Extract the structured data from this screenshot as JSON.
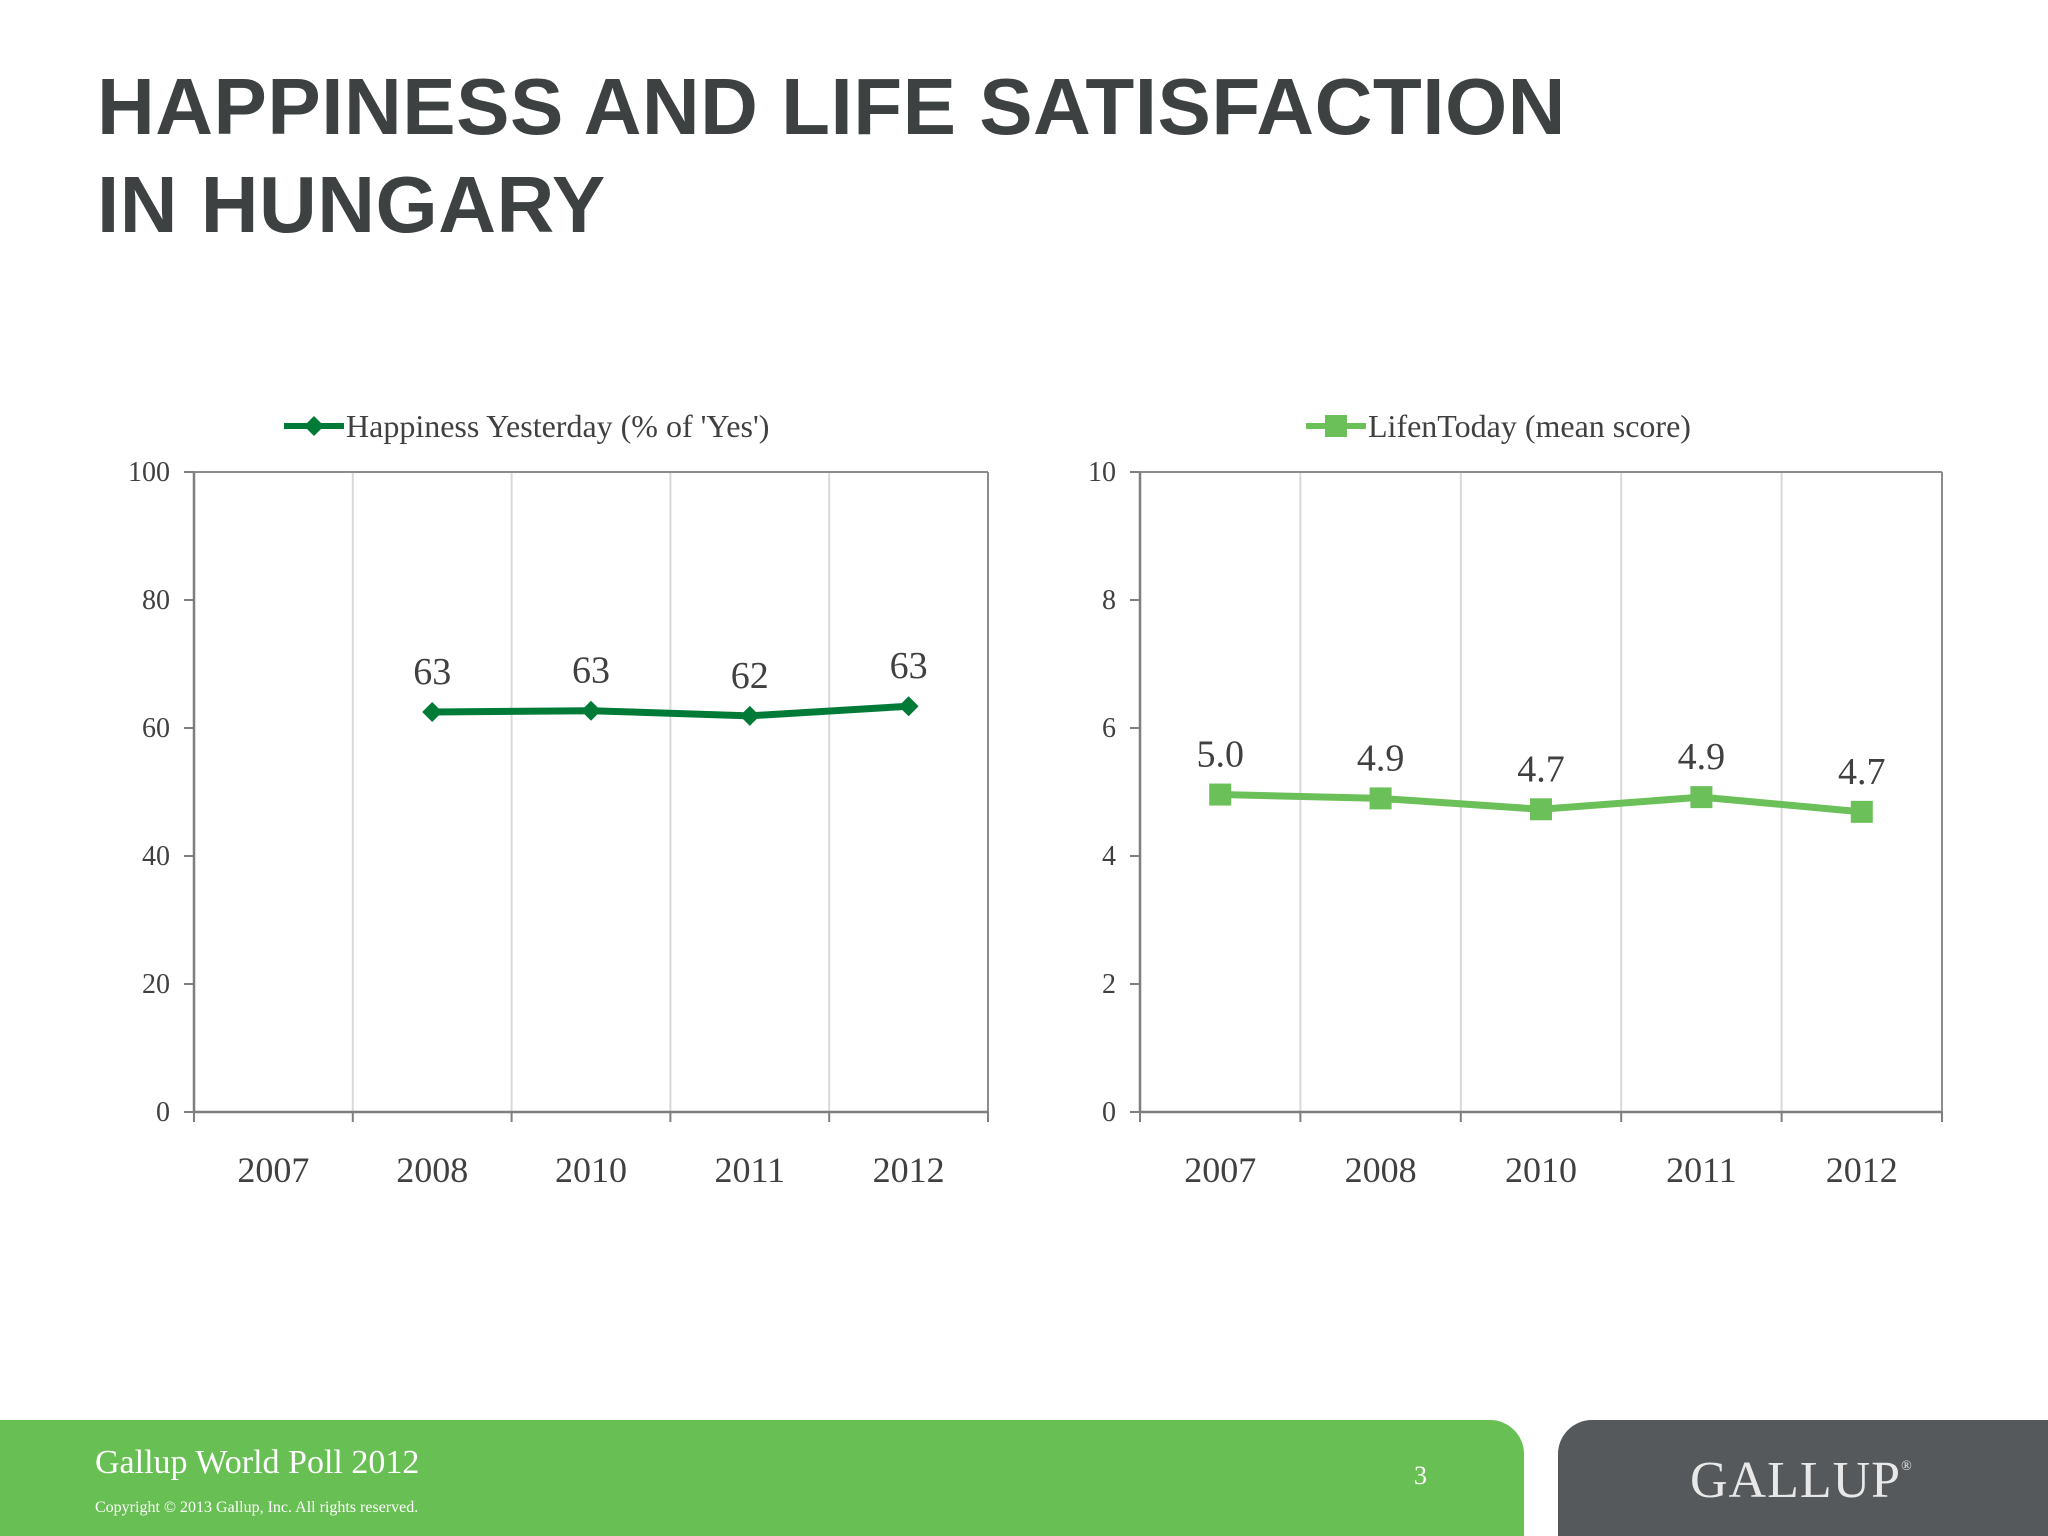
{
  "title": {
    "line1": "HAPPINESS AND LIFE SATISFACTION",
    "line2": "IN HUNGARY"
  },
  "colors": {
    "dark_green": "#007a37",
    "light_green": "#6cc05a",
    "title_gray": "#3e4142",
    "footer_green": "#68bf53",
    "footer_gray": "#55595b"
  },
  "chart_data": [
    {
      "type": "line",
      "categories": [
        "2007",
        "2008",
        "2010",
        "2011",
        "2012"
      ],
      "series": [
        {
          "name": "Happiness Yesterday (% of 'Yes')",
          "values": [
            null,
            62.5,
            62.7,
            61.9,
            63.4
          ],
          "labels": [
            null,
            "63",
            "63",
            "62",
            "63"
          ],
          "marker": "diamond"
        }
      ],
      "ylim": [
        0,
        100
      ],
      "yticks": [
        0,
        20,
        40,
        60,
        80,
        100
      ],
      "legend": "top",
      "grid": "vertical"
    },
    {
      "type": "line",
      "categories": [
        "2007",
        "2008",
        "2010",
        "2011",
        "2012"
      ],
      "series": [
        {
          "name": "LifenToday (mean score)",
          "values": [
            4.96,
            4.9,
            4.73,
            4.92,
            4.69
          ],
          "labels": [
            "5.0",
            "4.9",
            "4.7",
            "4.9",
            "4.7"
          ],
          "marker": "square"
        }
      ],
      "ylim": [
        0,
        10
      ],
      "yticks": [
        0,
        2,
        4,
        6,
        8,
        10
      ],
      "legend": "top",
      "grid": "vertical"
    }
  ],
  "footer": {
    "title": "Gallup World Poll 2012",
    "copyright": "Copyright © 2013 Gallup, Inc. All rights reserved.",
    "page": "3",
    "logo": "GALLUP",
    "logo_mark": "®"
  }
}
